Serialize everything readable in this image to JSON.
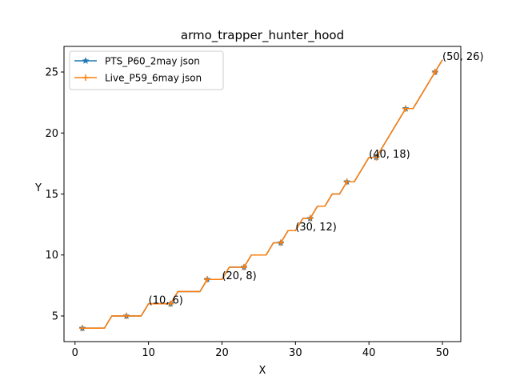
{
  "chart_data": {
    "type": "line",
    "title": "armo_trapper_hunter_hood",
    "xlabel": "X",
    "ylabel": "Y",
    "xlim": [
      -1.5,
      52.5
    ],
    "ylim": [
      2.9,
      27.1
    ],
    "xticks": [
      0,
      10,
      20,
      30,
      40,
      50
    ],
    "yticks": [
      5,
      10,
      15,
      20,
      25
    ],
    "legend_position": "top-left",
    "grid": false,
    "x": [
      1,
      2,
      3,
      4,
      5,
      6,
      7,
      8,
      9,
      10,
      11,
      12,
      13,
      14,
      15,
      16,
      17,
      18,
      19,
      20,
      21,
      22,
      23,
      24,
      25,
      26,
      27,
      28,
      29,
      30,
      31,
      32,
      33,
      34,
      35,
      36,
      37,
      38,
      39,
      40,
      41,
      42,
      43,
      44,
      45,
      46,
      47,
      48,
      49,
      50
    ],
    "series": [
      {
        "name": "PTS_P60_2may json",
        "color": "#1f77b4",
        "marker": "star",
        "marker_every": [
          1,
          7,
          13,
          18,
          23,
          28,
          32,
          37,
          41,
          45,
          49
        ],
        "values": [
          4,
          4,
          4,
          4,
          5,
          5,
          5,
          5,
          5,
          6,
          6,
          6,
          6,
          7,
          7,
          7,
          7,
          8,
          8,
          8,
          9,
          9,
          9,
          10,
          10,
          10,
          11,
          11,
          12,
          12,
          13,
          13,
          14,
          14,
          15,
          15,
          16,
          16,
          17,
          18,
          18,
          19,
          20,
          21,
          22,
          22,
          23,
          24,
          25,
          26
        ]
      },
      {
        "name": "Live_P59_6may json",
        "color": "#ff7f0e",
        "marker": "plus",
        "marker_every": [
          1,
          7,
          13,
          18,
          23,
          28,
          32,
          37,
          41,
          45,
          49
        ],
        "values": [
          4,
          4,
          4,
          4,
          5,
          5,
          5,
          5,
          5,
          6,
          6,
          6,
          6,
          7,
          7,
          7,
          7,
          8,
          8,
          8,
          9,
          9,
          9,
          10,
          10,
          10,
          11,
          11,
          12,
          12,
          13,
          13,
          14,
          14,
          15,
          15,
          16,
          16,
          17,
          18,
          18,
          19,
          20,
          21,
          22,
          22,
          23,
          24,
          25,
          26
        ]
      }
    ],
    "annotations": [
      {
        "x": 10,
        "y": 6,
        "text": "(10, 6)"
      },
      {
        "x": 20,
        "y": 8,
        "text": "(20, 8)"
      },
      {
        "x": 30,
        "y": 12,
        "text": "(30, 12)"
      },
      {
        "x": 40,
        "y": 18,
        "text": "(40, 18)"
      },
      {
        "x": 50,
        "y": 26,
        "text": "(50, 26)"
      }
    ]
  }
}
